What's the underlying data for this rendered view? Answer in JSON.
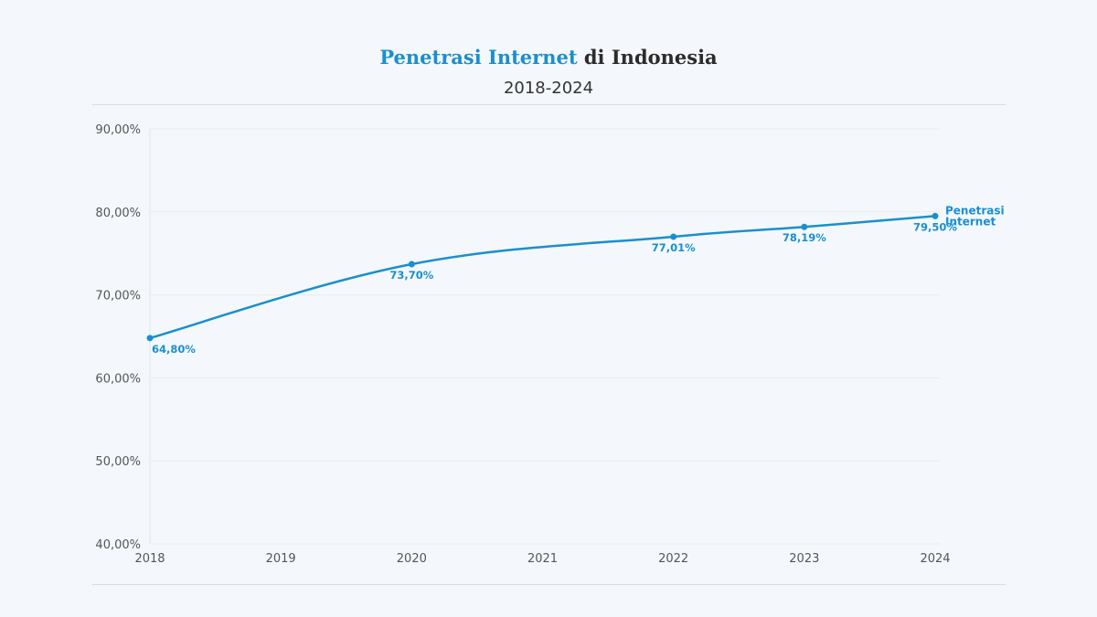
{
  "title": {
    "highlight": "Penetrasi Internet",
    "rest": "di Indonesia"
  },
  "subtitle": "2018-2024",
  "chart_data": {
    "type": "line",
    "title": "Penetrasi Internet di Indonesia",
    "subtitle": "2018-2024",
    "x_ticks": [
      "2018",
      "2019",
      "2020",
      "2021",
      "2022",
      "2023",
      "2024"
    ],
    "y_ticks": [
      "40,00%",
      "50,00%",
      "60,00%",
      "70,00%",
      "80,00%",
      "90,00%"
    ],
    "ylim": [
      40,
      90
    ],
    "xlim": [
      2018,
      2024
    ],
    "grid": true,
    "legend": "right, end of line",
    "series": [
      {
        "name": "Penetrasi Internet",
        "color": "#1a8fcf",
        "x": [
          2018,
          2020,
          2022,
          2023,
          2024
        ],
        "y": [
          64.8,
          73.7,
          77.01,
          78.19,
          79.5
        ],
        "labels": [
          "64,80%",
          "73,70%",
          "77,01%",
          "78,19%",
          "79,50%"
        ]
      }
    ]
  }
}
